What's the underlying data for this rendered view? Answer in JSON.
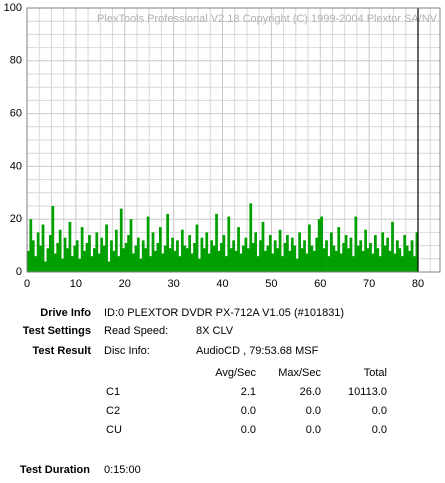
{
  "chart_data": {
    "type": "bar",
    "annotation": "PlexTools Professional V2.18 Copyright (C) 1999-2004 Plextor SA/NV",
    "x": [
      0.25,
      0.75,
      1.25,
      1.75,
      2.25,
      2.75,
      3.25,
      3.75,
      4.25,
      4.75,
      5.25,
      5.75,
      6.25,
      6.75,
      7.25,
      7.75,
      8.25,
      8.75,
      9.25,
      9.75,
      10.25,
      10.75,
      11.25,
      11.75,
      12.25,
      12.75,
      13.25,
      13.75,
      14.25,
      14.75,
      15.25,
      15.75,
      16.25,
      16.75,
      17.25,
      17.75,
      18.25,
      18.75,
      19.25,
      19.75,
      20.25,
      20.75,
      21.25,
      21.75,
      22.25,
      22.75,
      23.25,
      23.75,
      24.25,
      24.75,
      25.25,
      25.75,
      26.25,
      26.75,
      27.25,
      27.75,
      28.25,
      28.75,
      29.25,
      29.75,
      30.25,
      30.75,
      31.25,
      31.75,
      32.25,
      32.75,
      33.25,
      33.75,
      34.25,
      34.75,
      35.25,
      35.75,
      36.25,
      36.75,
      37.25,
      37.75,
      38.25,
      38.75,
      39.25,
      39.75,
      40.25,
      40.75,
      41.25,
      41.75,
      42.25,
      42.75,
      43.25,
      43.75,
      44.25,
      44.75,
      45.25,
      45.75,
      46.25,
      46.75,
      47.25,
      47.75,
      48.25,
      48.75,
      49.25,
      49.75,
      50.25,
      50.75,
      51.25,
      51.75,
      52.25,
      52.75,
      53.25,
      53.75,
      54.25,
      54.75,
      55.25,
      55.75,
      56.25,
      56.75,
      57.25,
      57.75,
      58.25,
      58.75,
      59.25,
      59.75,
      60.25,
      60.75,
      61.25,
      61.75,
      62.25,
      62.75,
      63.25,
      63.75,
      64.25,
      64.75,
      65.25,
      65.75,
      66.25,
      66.75,
      67.25,
      67.75,
      68.25,
      68.75,
      69.25,
      69.75,
      70.25,
      70.75,
      71.25,
      71.75,
      72.25,
      72.75,
      73.25,
      73.75,
      74.25,
      74.75,
      75.25,
      75.75,
      76.25,
      76.75,
      77.25,
      77.75,
      78.25,
      78.75,
      79.25,
      79.75
    ],
    "values": [
      8,
      20,
      12,
      6,
      15,
      10,
      18,
      4,
      9,
      14,
      25,
      7,
      11,
      16,
      5,
      13,
      9,
      19,
      6,
      10,
      12,
      5,
      17,
      8,
      11,
      14,
      6,
      9,
      15,
      7,
      13,
      10,
      18,
      4,
      12,
      8,
      16,
      6,
      24,
      9,
      11,
      14,
      20,
      7,
      10,
      13,
      5,
      12,
      9,
      21,
      6,
      15,
      8,
      11,
      17,
      7,
      10,
      22,
      9,
      13,
      8,
      12,
      6,
      16,
      10,
      9,
      14,
      7,
      11,
      18,
      5,
      13,
      9,
      15,
      7,
      12,
      10,
      22,
      8,
      11,
      14,
      6,
      21,
      9,
      12,
      8,
      17,
      7,
      10,
      13,
      9,
      26,
      11,
      15,
      6,
      12,
      19,
      8,
      10,
      14,
      7,
      12,
      9,
      16,
      6,
      11,
      14,
      8,
      13,
      10,
      5,
      15,
      9,
      12,
      7,
      18,
      10,
      8,
      13,
      20,
      21,
      9,
      12,
      6,
      15,
      10,
      8,
      17,
      7,
      11,
      14,
      9,
      13,
      6,
      21,
      10,
      12,
      8,
      16,
      9,
      11,
      7,
      14,
      9,
      6,
      15,
      10,
      13,
      8,
      19,
      7,
      12,
      9,
      6,
      14,
      10,
      8,
      12,
      6,
      15
    ],
    "bar_width": 0.5,
    "color": "#00a000",
    "xlim": [
      0,
      84.5
    ],
    "ylim": [
      0,
      100
    ],
    "xticks": [
      0,
      10,
      20,
      30,
      40,
      50,
      60,
      70,
      80
    ],
    "yticks": [
      0,
      20,
      40,
      60,
      80,
      100
    ],
    "grid": true,
    "grid_minor_xticks": [
      2.5,
      5,
      7.5,
      12.5,
      15,
      17.5,
      22.5,
      25,
      27.5,
      32.5,
      35,
      37.5,
      42.5,
      45,
      47.5,
      52.5,
      55,
      57.5,
      62.5,
      65,
      67.5,
      72.5,
      75,
      77.5,
      82.5
    ],
    "grid_minor_yticks": [
      5,
      10,
      15,
      25,
      30,
      35,
      45,
      50,
      55,
      65,
      70,
      75,
      85,
      90,
      95
    ],
    "end_marker": 80
  },
  "report": {
    "drive_info": {
      "label": "Drive Info",
      "value": "ID:0 PLEXTOR DVDR PX-712A V1.05 (#101831)"
    },
    "test_settings": {
      "label": "Test Settings",
      "key": "Read Speed:",
      "value": "8X CLV"
    },
    "test_result": {
      "label": "Test Result",
      "key": "Disc Info:",
      "value": "AudioCD , 79:53.68 MSF"
    },
    "table": {
      "header": [
        "Avg/Sec",
        "Max/Sec",
        "Total"
      ],
      "rows": [
        [
          "C1",
          "2.1",
          "26.0",
          "10113.0"
        ],
        [
          "C2",
          "0.0",
          "0.0",
          "0.0"
        ],
        [
          "CU",
          "0.0",
          "0.0",
          "0.0"
        ]
      ]
    },
    "test_duration": {
      "label": "Test Duration",
      "value": "0:15:00"
    }
  }
}
